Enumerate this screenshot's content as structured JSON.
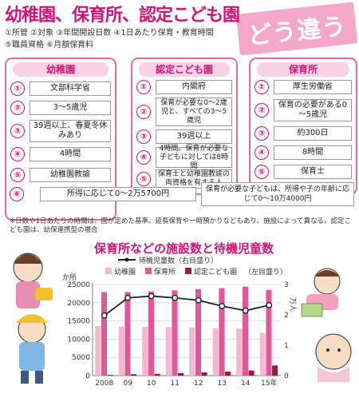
{
  "header": {
    "title": "幼稚園、保育所、認定こども園",
    "tag": "どう違う",
    "legend_line1": "①所管 ②対象 ③年間開設日数 ④1日あたり保育・教育時間",
    "legend_line2": "⑤職員資格 ⑥月額保育料"
  },
  "columns": [
    {
      "heading": "幼稚園",
      "items": [
        "文部科学省",
        "3～5歳児",
        "39週以上、春夏冬休みあり",
        "4時間",
        "幼稚園教諭"
      ]
    },
    {
      "heading": "認定こども園",
      "items": [
        "内閣府",
        "保育が必要な0～2歳児と、すべての3～5歳児",
        "39週以上",
        "4時間。保育が必要な子どもに対しては8時間",
        "保育士と幼稚園教諭の両資格を有する人"
      ]
    },
    {
      "heading": "保育所",
      "items": [
        "厚生労働省",
        "保育の必要がある0～5歳児",
        "約300日",
        "8時間",
        "保育士"
      ]
    }
  ],
  "fees": {
    "num": "⑥",
    "kindergarten": "所得に応じて0～2万5700円",
    "nursery": "保育が必要な子どもは、所得や子の年齢に応じて0～10万4000円"
  },
  "num_labels": [
    "①",
    "②",
    "③",
    "④",
    "⑤",
    "⑥"
  ],
  "note": "※日数や1日あたりの時間は、国が定めた基準。延長保育や一時預かりなどもあり、施設によって異なる。認定こども園は、幼保連携型の場合",
  "chart_data": {
    "type": "bar",
    "title": "保育所などの施設数と待機児童数",
    "categories": [
      "2008",
      "09",
      "10",
      "11",
      "12",
      "13",
      "14",
      "15年"
    ],
    "left_axis_label": "か所",
    "right_axis_label": "万人",
    "ylim": [
      0,
      25000
    ],
    "yticks": [
      0,
      5000,
      10000,
      15000,
      20000,
      25000
    ],
    "y2lim": [
      0,
      3
    ],
    "y2ticks": [
      0,
      1,
      2,
      3
    ],
    "series": [
      {
        "name": "幼稚園",
        "color": "#f3b7cf",
        "values": [
          13600,
          13500,
          13400,
          13300,
          13200,
          13000,
          12900,
          11700
        ]
      },
      {
        "name": "保育所",
        "color": "#e4569a",
        "values": [
          22900,
          22900,
          23100,
          23400,
          23700,
          24000,
          24400,
          23500
        ]
      },
      {
        "name": "認定こども園",
        "color": "#9b1b3b",
        "values": [
          200,
          400,
          500,
          700,
          900,
          1100,
          1400,
          2800
        ]
      }
    ],
    "line": {
      "name": "待機児童数",
      "values": [
        1.98,
        2.56,
        2.62,
        2.56,
        2.48,
        2.29,
        2.14,
        2.32
      ]
    },
    "legend": {
      "line_label": "待機児童数（右目盛り）",
      "bars_label_suffix": "（左目盛り）"
    }
  }
}
